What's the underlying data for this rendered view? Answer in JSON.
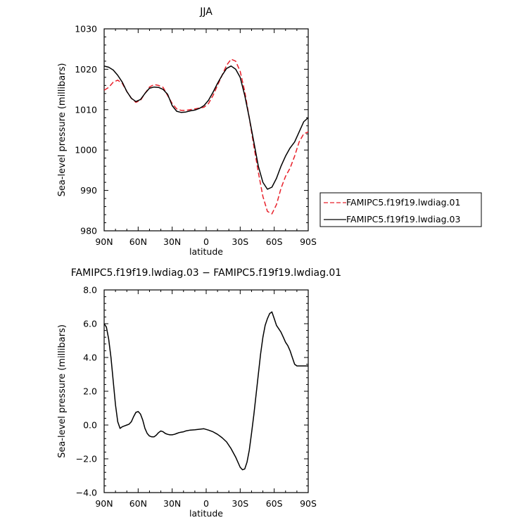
{
  "chart_data": [
    {
      "type": "line",
      "title": "JJA",
      "xlabel": "latitude",
      "ylabel": "Sea-level pressure (millibars)",
      "xlim": [
        90,
        -90
      ],
      "ylim": [
        980,
        1030
      ],
      "xtick_values": [
        90,
        60,
        30,
        0,
        -30,
        -60,
        -90
      ],
      "xtick_labels": [
        "90N",
        "60N",
        "30N",
        "0",
        "30S",
        "60S",
        "90S"
      ],
      "ytick_values": [
        980,
        990,
        1000,
        1010,
        1020,
        1030
      ],
      "ytick_labels": [
        "980",
        "990",
        "1000",
        "1010",
        "1020",
        "1030"
      ],
      "legend_position": "right",
      "series": [
        {
          "name": "FAMIPC5.f19f19.lwdiag.01",
          "color": "#e8202a",
          "dash": "dashed",
          "x": [
            90,
            86,
            82,
            78,
            74,
            70,
            66,
            62,
            58,
            54,
            50,
            46,
            42,
            38,
            34,
            30,
            26,
            22,
            18,
            14,
            10,
            6,
            2,
            -2,
            -6,
            -10,
            -14,
            -18,
            -22,
            -26,
            -30,
            -34,
            -38,
            -42,
            -46,
            -50,
            -54,
            -58,
            -62,
            -64,
            -66,
            -70,
            -74,
            -78,
            -82,
            -86,
            -90
          ],
          "y": [
            1014.8,
            1015.5,
            1016.8,
            1017.3,
            1016.5,
            1014.5,
            1012.8,
            1011.8,
            1012.3,
            1014.0,
            1015.6,
            1016.2,
            1016.0,
            1015.5,
            1013.5,
            1011.5,
            1010.2,
            1009.8,
            1009.8,
            1010.0,
            1010.2,
            1010.4,
            1010.6,
            1011.5,
            1013.5,
            1016.0,
            1018.5,
            1021.0,
            1022.5,
            1022.0,
            1019.5,
            1014.5,
            1008.0,
            1001.0,
            994.5,
            988.5,
            984.8,
            984.2,
            986.5,
            988.5,
            990.5,
            993.5,
            995.5,
            998.5,
            1002.0,
            1004.0,
            1004.5
          ]
        },
        {
          "name": "FAMIPC5.f19f19.lwdiag.03",
          "color": "#000000",
          "dash": "solid",
          "x": [
            90,
            86,
            82,
            78,
            74,
            70,
            66,
            62,
            58,
            54,
            50,
            46,
            42,
            38,
            34,
            30,
            26,
            22,
            18,
            14,
            10,
            6,
            2,
            -2,
            -6,
            -10,
            -14,
            -18,
            -22,
            -26,
            -30,
            -34,
            -38,
            -42,
            -46,
            -50,
            -54,
            -58,
            -62,
            -64,
            -66,
            -70,
            -74,
            -78,
            -82,
            -86,
            -90
          ],
          "y": [
            1020.8,
            1020.5,
            1019.8,
            1018.5,
            1016.8,
            1014.5,
            1012.8,
            1012.0,
            1012.5,
            1014.0,
            1015.3,
            1015.6,
            1015.5,
            1015.0,
            1013.8,
            1011.0,
            1009.6,
            1009.3,
            1009.4,
            1009.7,
            1009.9,
            1010.3,
            1011.0,
            1012.3,
            1014.3,
            1016.5,
            1018.5,
            1020.2,
            1020.8,
            1020.0,
            1018.0,
            1013.5,
            1008.0,
            1002.0,
            996.0,
            992.0,
            990.3,
            990.8,
            993.0,
            994.5,
            996.0,
            998.5,
            1000.5,
            1002.0,
            1004.5,
            1007.0,
            1008.0
          ]
        }
      ]
    },
    {
      "type": "line",
      "title": "FAMIPC5.f19f19.lwdiag.03 − FAMIPC5.f19f19.lwdiag.01",
      "xlabel": "latitude",
      "ylabel": "Sea-level pressure (millibars)",
      "xlim": [
        90,
        -90
      ],
      "ylim": [
        -4,
        8
      ],
      "xtick_values": [
        90,
        60,
        30,
        0,
        -30,
        -60,
        -90
      ],
      "xtick_labels": [
        "90N",
        "60N",
        "30N",
        "0",
        "30S",
        "60S",
        "90S"
      ],
      "ytick_values": [
        -4,
        -2,
        0,
        2,
        4,
        6,
        8
      ],
      "ytick_labels": [
        "−4.0",
        "−2.0",
        "0.0",
        "2.0",
        "4.0",
        "6.0",
        "8.0"
      ],
      "series": [
        {
          "color": "#000000",
          "dash": "solid",
          "x": [
            90,
            88,
            86,
            84,
            82,
            80,
            78,
            76,
            74,
            72,
            70,
            68,
            66,
            64,
            62,
            60,
            58,
            56,
            54,
            52,
            50,
            48,
            46,
            44,
            42,
            40,
            38,
            36,
            34,
            32,
            30,
            28,
            26,
            24,
            22,
            20,
            18,
            14,
            10,
            6,
            2,
            -2,
            -6,
            -10,
            -14,
            -18,
            -22,
            -26,
            -30,
            -32,
            -34,
            -36,
            -38,
            -40,
            -42,
            -44,
            -46,
            -48,
            -50,
            -52,
            -54,
            -56,
            -58,
            -60,
            -62,
            -64,
            -66,
            -68,
            -70,
            -72,
            -74,
            -76,
            -78,
            -80,
            -82,
            -84,
            -86,
            -88,
            -90
          ],
          "y": [
            6.0,
            5.8,
            5.1,
            4.0,
            2.6,
            1.2,
            0.2,
            -0.2,
            -0.1,
            -0.05,
            0.0,
            0.05,
            0.2,
            0.5,
            0.75,
            0.8,
            0.65,
            0.3,
            -0.2,
            -0.5,
            -0.65,
            -0.7,
            -0.7,
            -0.6,
            -0.45,
            -0.35,
            -0.4,
            -0.5,
            -0.55,
            -0.58,
            -0.58,
            -0.55,
            -0.5,
            -0.45,
            -0.42,
            -0.4,
            -0.35,
            -0.3,
            -0.28,
            -0.25,
            -0.22,
            -0.3,
            -0.4,
            -0.55,
            -0.75,
            -1.0,
            -1.4,
            -1.9,
            -2.5,
            -2.65,
            -2.6,
            -2.2,
            -1.5,
            -0.5,
            0.6,
            1.8,
            3.0,
            4.2,
            5.2,
            5.9,
            6.3,
            6.6,
            6.7,
            6.3,
            5.9,
            5.7,
            5.5,
            5.2,
            4.9,
            4.7,
            4.4,
            4.0,
            3.6,
            3.5,
            3.5,
            3.5,
            3.5,
            3.5,
            3.5
          ]
        }
      ]
    }
  ]
}
